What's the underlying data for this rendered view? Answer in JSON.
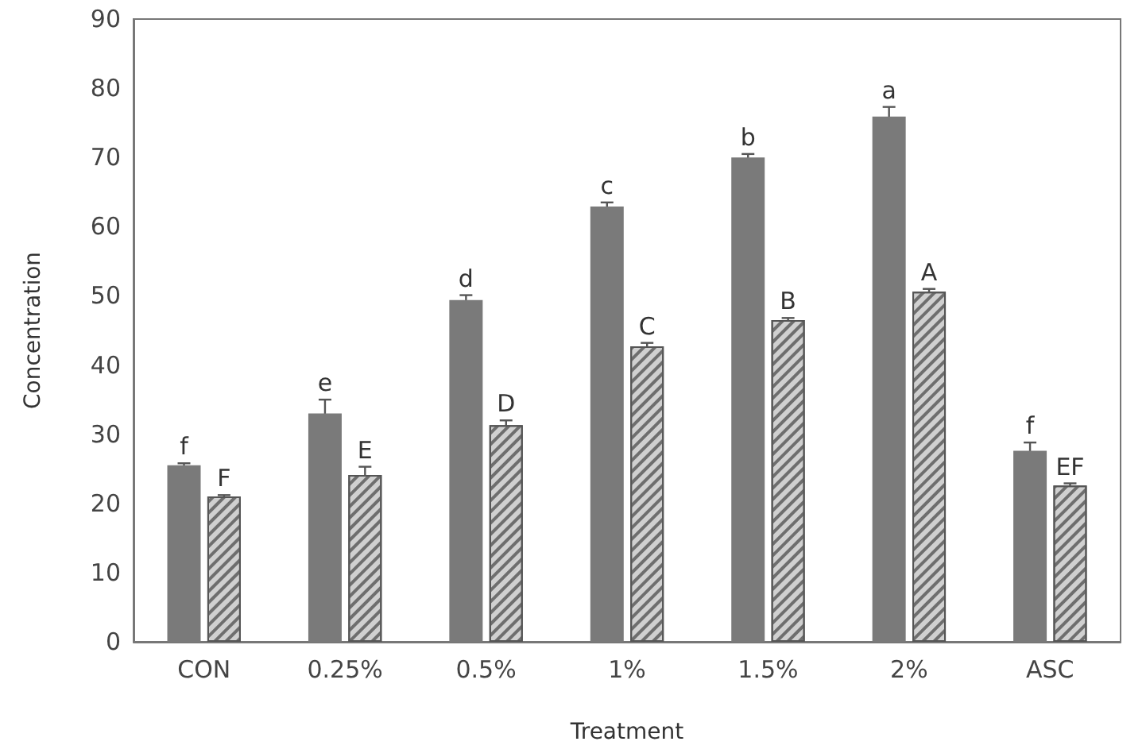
{
  "chart_data": {
    "type": "bar",
    "xlabel": "Treatment",
    "ylabel": "Concentration",
    "categories": [
      "CON",
      "0.25%",
      "0.5%",
      "1%",
      "1.5%",
      "2%",
      "ASC"
    ],
    "ylim": [
      0,
      90
    ],
    "yticks": [
      0,
      10,
      20,
      30,
      40,
      50,
      60,
      70,
      80,
      90
    ],
    "grid": false,
    "series": [
      {
        "color": "#7a7a7a",
        "values": [
          25.5,
          33.0,
          49.4,
          62.9,
          70.0,
          75.9,
          27.6
        ],
        "errors": [
          0.3,
          2.0,
          0.7,
          0.6,
          0.5,
          1.4,
          1.2
        ],
        "value_labels": [
          "f",
          "e",
          "d",
          "c",
          "b",
          "a",
          "f"
        ]
      },
      {
        "color": "#d0d0d0",
        "values": [
          21.0,
          24.1,
          31.3,
          42.7,
          46.5,
          50.6,
          22.6
        ],
        "errors": [
          0.2,
          1.2,
          0.7,
          0.5,
          0.3,
          0.4,
          0.3
        ],
        "value_labels": [
          "F",
          "E",
          "D",
          "C",
          "B",
          "A",
          "EF"
        ]
      }
    ]
  }
}
